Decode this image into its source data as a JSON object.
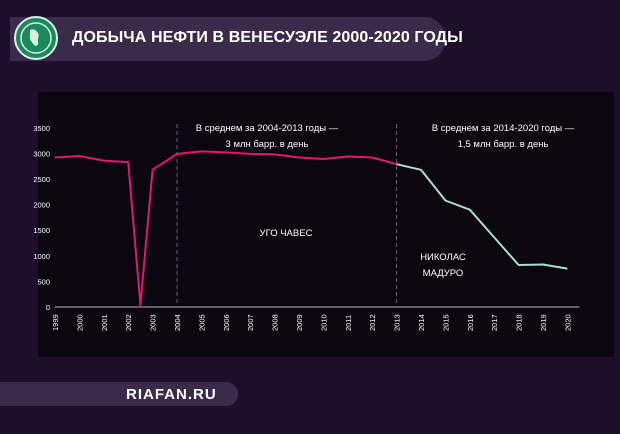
{
  "header": {
    "title": "ДОБЫЧА НЕФТИ В ВЕНЕСУЭЛЕ 2000-2020 ГОДЫ"
  },
  "footer": {
    "site": "RIAFAN.RU"
  },
  "colors": {
    "chavez": "#e0186f",
    "maduro": "#a9e0c9",
    "background": "#1d0f2b",
    "panel": "#0b0610"
  },
  "chart_data": {
    "type": "line",
    "x": [
      1999,
      2000,
      2001,
      2002,
      2002.5,
      2003,
      2004,
      2005,
      2006,
      2007,
      2008,
      2009,
      2010,
      2011,
      2012,
      2013,
      2014,
      2015,
      2016,
      2017,
      2018,
      2019,
      2020
    ],
    "x_ticks": [
      "1999",
      "2000",
      "2001",
      "2002",
      "2003",
      "2004",
      "2005",
      "2006",
      "2007",
      "2008",
      "2009",
      "2010",
      "2011",
      "2012",
      "2013",
      "2014",
      "2015",
      "2016",
      "2017",
      "2018",
      "2019",
      "2020"
    ],
    "ylim": [
      0,
      3750
    ],
    "y_ticks": [
      "0",
      "500",
      "1000",
      "1500",
      "2000",
      "2500",
      "3000",
      "3500"
    ],
    "series": [
      {
        "name": "УГО ЧАВЕС",
        "color": "#e0186f",
        "x": [
          1999,
          2000,
          2001,
          2002,
          2002.5,
          2003,
          2004,
          2005,
          2006,
          2007,
          2008,
          2009,
          2010,
          2011,
          2012,
          2013
        ],
        "values": [
          2920,
          2950,
          2860,
          2830,
          40,
          2680,
          2990,
          3040,
          3020,
          2990,
          2980,
          2920,
          2890,
          2940,
          2920,
          2790
        ]
      },
      {
        "name": "НИКОЛАС МАДУРО",
        "color": "#a9e0c9",
        "x": [
          2013,
          2014,
          2015,
          2016,
          2017,
          2018,
          2019,
          2020
        ],
        "values": [
          2790,
          2680,
          2080,
          1900,
          1360,
          820,
          830,
          750
        ]
      }
    ],
    "annotations": [
      {
        "id": "period1",
        "lines": [
          "В среднем за 2004-2013 годы —",
          "3 млн барр. в день"
        ]
      },
      {
        "id": "period2",
        "lines": [
          "В среднем за 2014-2020 годы —",
          "1,5 млн барр. в день"
        ]
      },
      {
        "id": "chavez_label",
        "lines": [
          "УГО ЧАВЕС"
        ]
      },
      {
        "id": "maduro_label",
        "lines": [
          "НИКОЛАС",
          "МАДУРО"
        ]
      }
    ],
    "dividers": [
      2004,
      2013
    ]
  }
}
